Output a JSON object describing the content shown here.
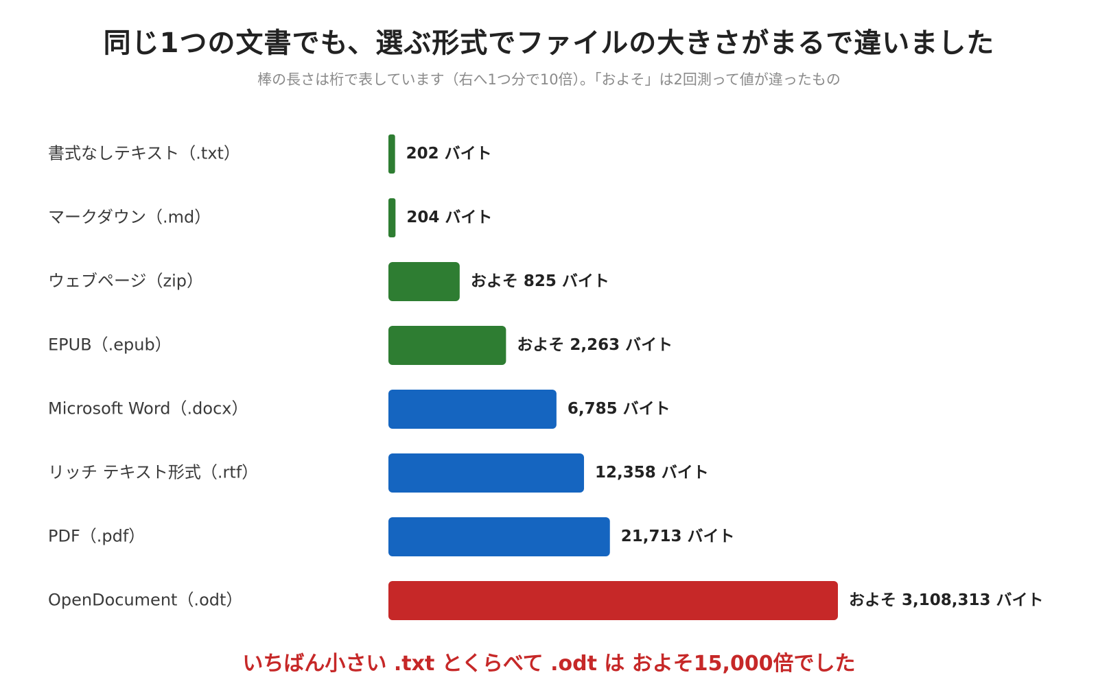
{
  "title": "同じ1つの文書でも、選ぶ形式でファイルの大きさがまるで違いました",
  "subtitle": "棒の長さは桁で表しています（右へ1つ分で10倍）。「およそ」は2回測って値が違ったもの",
  "footnote": "いちばん小さい .txt とくらべて .odt は およそ15,000倍でした",
  "colors": {
    "green": "#2e7d32",
    "blue": "#1565c0",
    "red": "#c62828",
    "title": "#222222",
    "subtitle": "#8a8a8a"
  },
  "chart_data": {
    "type": "bar",
    "orientation": "horizontal",
    "scale": "log10",
    "unit": "バイト",
    "categories": [
      "書式なしテキスト（.txt）",
      "マークダウン（.md）",
      "ウェブページ（zip）",
      "EPUB（.epub）",
      "Microsoft Word（.docx）",
      "リッチ テキスト形式（.rtf）",
      "PDF（.pdf）",
      "OpenDocument（.odt）"
    ],
    "values": [
      202,
      204,
      825,
      2263,
      6785,
      12358,
      21713,
      3108313
    ],
    "value_labels": [
      "202 バイト",
      "204 バイト",
      "およそ 825 バイト",
      "およそ 2,263 バイト",
      "6,785 バイト",
      "12,358 バイト",
      "21,713 バイト",
      "およそ 3,108,313 バイト"
    ],
    "bar_colors": [
      "#2e7d32",
      "#2e7d32",
      "#2e7d32",
      "#2e7d32",
      "#1565c0",
      "#1565c0",
      "#1565c0",
      "#c62828"
    ],
    "label_colors": [
      "#222222",
      "#222222",
      "#222222",
      "#222222",
      "#222222",
      "#222222",
      "#222222",
      "#c62828"
    ],
    "xlim": [
      200,
      15000000
    ],
    "grid": false,
    "legend": "none"
  }
}
